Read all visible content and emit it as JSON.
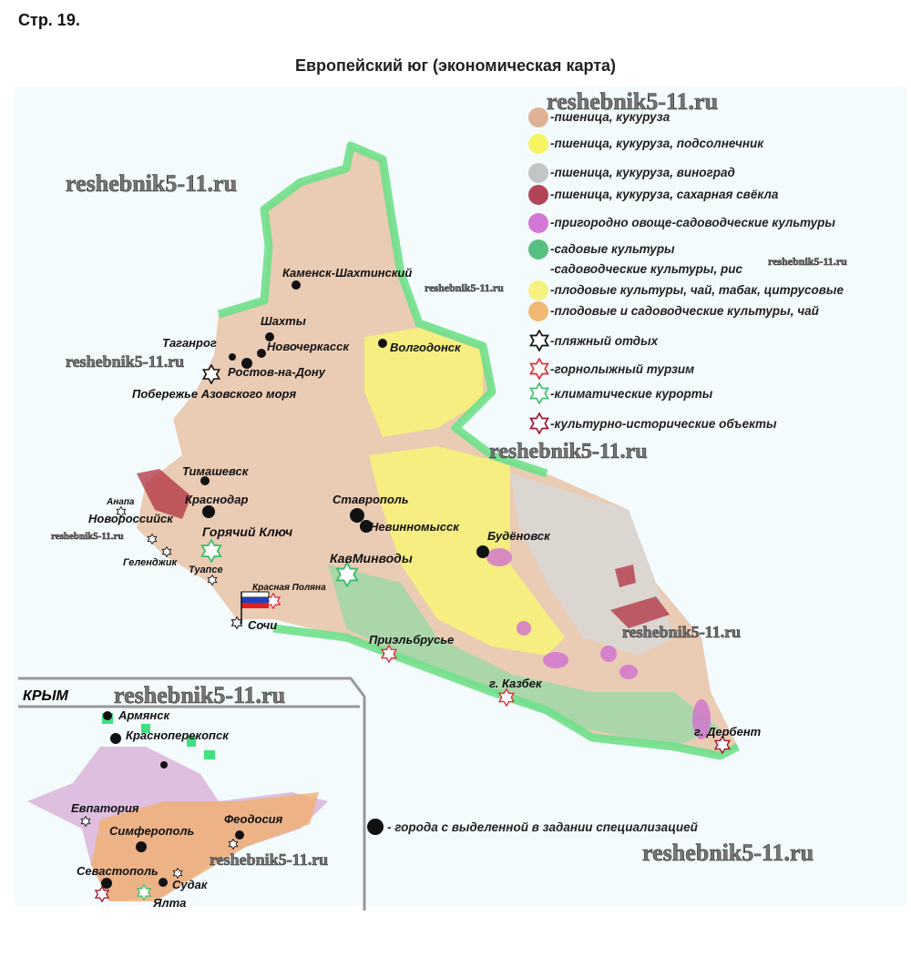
{
  "page_label": "Стр. 19.",
  "title": "Европейский юг (экономическая карта)",
  "watermark": "reshebnik5-11.ru",
  "legend": [
    {
      "label": "-пшеница, кукуруза",
      "symbol": "speckle",
      "color": "#d9a07a"
    },
    {
      "label": "-пшеница, кукуруза, подсолнечник",
      "symbol": "speckle",
      "color": "#f7f23a"
    },
    {
      "label": "-пшеница, кукуруза, виноград",
      "symbol": "speckle",
      "color": "#b8b8b8"
    },
    {
      "label": "-пшеница, кукуруза, сахарная свёкла",
      "symbol": "speckle",
      "color": "#a0182a"
    },
    {
      "label": "-пригородно овоще-садоводческие культуры",
      "symbol": "speckle",
      "color": "#cc55cc"
    },
    {
      "label": "-садовые культуры",
      "symbol": "speckle",
      "color": "#2fb060"
    },
    {
      "label": "-садоводческие культуры, рис",
      "symbol": "speckle",
      "color": "#ffffff"
    },
    {
      "label": "-плодовые культуры, чай, табак, цитрусовые",
      "symbol": "speckle",
      "color": "#f5f060"
    },
    {
      "label": "-плодовые и садоводческие культуры, чай",
      "symbol": "speckle",
      "color": "#f0a850"
    },
    {
      "label": "-пляжный отдых",
      "symbol": "star",
      "color": "#111111"
    },
    {
      "label": "-горнолыжный турзим",
      "symbol": "star",
      "color": "#e0303a"
    },
    {
      "label": "-климатические курорты",
      "symbol": "star",
      "color": "#40c070"
    },
    {
      "label": "-культурно-исторические объекты",
      "symbol": "star",
      "color": "#a01830"
    }
  ],
  "cities_legend": "- города с выделенной в задании специализацией",
  "cities": {
    "kamensk": "Каменск-Шахтинский",
    "shakhty": "Шахты",
    "taganrog": "Таганрог",
    "novocherkassk": "Новочеркасск",
    "rostov": "Ростов-на-Дону",
    "azov": "Побережье Азовского моря",
    "volgodonsk": "Волгодонск",
    "timashevsk": "Тимашевск",
    "krasnodar": "Краснодар",
    "anapa": "Анапа",
    "novorossiysk": "Новороссийск",
    "goryachy": "Горячий Ключ",
    "gelendzhik": "Геленджик",
    "tuapse": "Туапсе",
    "krasnaya": "Красная Поляна",
    "sochi": "Сочи",
    "stavropol": "Ставрополь",
    "nevinnomyssk": "Невинномысск",
    "kavminvody": "КавМинводы",
    "budyonnovsk": "Будёновск",
    "elbrus": "Приэльбрусье",
    "kazbek": "г. Казбек",
    "derbent": "г. Дербент"
  },
  "crimea": {
    "title": "КРЫМ",
    "cities": {
      "armyansk": "Армянск",
      "krasnoperekopsk": "Красноперекопск",
      "evpatoria": "Евпатория",
      "simferopol": "Симферополь",
      "feodosia": "Феодосия",
      "sevastopol": "Севастополь",
      "sudak": "Судак",
      "yalta": "Ялта"
    }
  },
  "colors": {
    "border": "#6fe08a",
    "water": "#e6f6fb",
    "wheat": "#d9a07a",
    "sunflower": "#f7f23a"
  }
}
